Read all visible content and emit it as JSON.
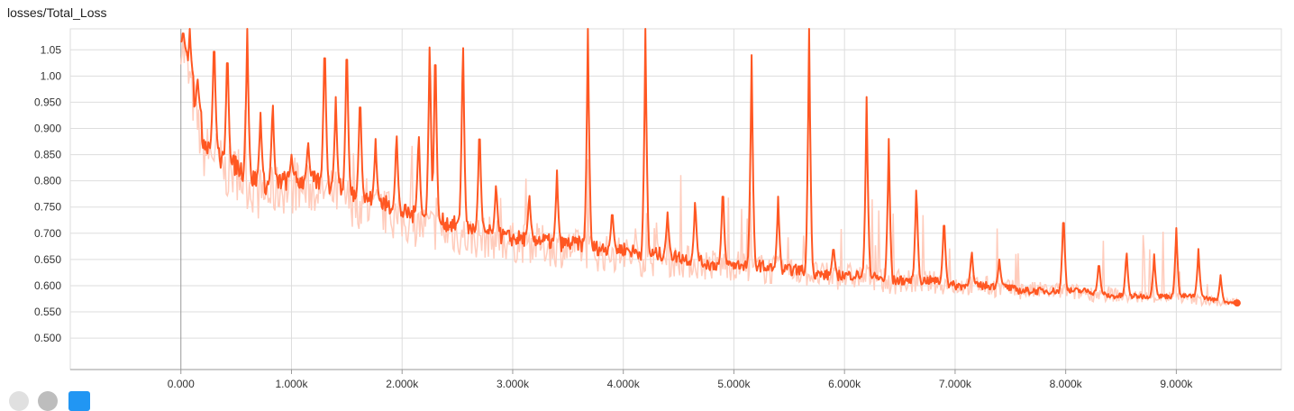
{
  "card": {
    "title": "losses/Total_Loss"
  },
  "colors": {
    "smoothed": "#ff5722",
    "raw": "#ffccbc",
    "grid": "#dddddd",
    "axis": "#999999"
  },
  "chart_data": {
    "type": "line",
    "title": "losses/Total_Loss",
    "xlabel": "",
    "ylabel": "",
    "xlim": [
      -1000,
      9950
    ],
    "ylim": [
      0.44,
      1.09
    ],
    "grid": true,
    "x_ticks": [
      0,
      1000,
      2000,
      3000,
      4000,
      5000,
      6000,
      7000,
      8000,
      9000
    ],
    "x_tick_labels": [
      "0.000",
      "1.000k",
      "2.000k",
      "3.000k",
      "4.000k",
      "5.000k",
      "6.000k",
      "7.000k",
      "8.000k",
      "9.000k"
    ],
    "y_ticks": [
      0.5,
      0.55,
      0.6,
      0.65,
      0.7,
      0.75,
      0.8,
      0.85,
      0.9,
      0.95,
      1.0,
      1.05
    ],
    "y_tick_labels": [
      "0.500",
      "0.550",
      "0.600",
      "0.650",
      "0.700",
      "0.750",
      "0.800",
      "0.850",
      "0.900",
      "0.950",
      "1.00",
      "1.05"
    ],
    "series": [
      {
        "role": "smoothed",
        "x": [
          0,
          100,
          200,
          300,
          400,
          500,
          600,
          700,
          800,
          900,
          1000,
          1200,
          1400,
          1600,
          1800,
          2000,
          2200,
          2400,
          2600,
          2800,
          3000,
          3200,
          3400,
          3600,
          3800,
          4000,
          4200,
          4400,
          4600,
          4800,
          5000,
          5200,
          5400,
          5600,
          5800,
          6000,
          6200,
          6400,
          6600,
          6800,
          7000,
          7200,
          7400,
          7600,
          7800,
          8000,
          8200,
          8400,
          8600,
          8800,
          9000,
          9200,
          9400,
          9550
        ],
        "y": [
          1.06,
          0.98,
          0.88,
          0.86,
          0.83,
          0.83,
          0.81,
          0.8,
          0.79,
          0.8,
          0.8,
          0.8,
          0.79,
          0.77,
          0.76,
          0.74,
          0.73,
          0.72,
          0.71,
          0.7,
          0.69,
          0.69,
          0.68,
          0.68,
          0.67,
          0.67,
          0.66,
          0.66,
          0.65,
          0.64,
          0.64,
          0.64,
          0.63,
          0.63,
          0.62,
          0.62,
          0.62,
          0.61,
          0.61,
          0.61,
          0.6,
          0.6,
          0.6,
          0.59,
          0.59,
          0.59,
          0.59,
          0.58,
          0.58,
          0.58,
          0.58,
          0.58,
          0.57,
          0.567
        ]
      },
      {
        "role": "raw",
        "x": [
          0,
          100,
          200,
          300,
          400,
          500,
          600,
          700,
          800,
          900,
          1000,
          1200,
          1400,
          1600,
          1800,
          2000,
          2200,
          2400,
          2600,
          2800,
          3000,
          3200,
          3400,
          3600,
          3800,
          4000,
          4200,
          4400,
          4600,
          4800,
          5000,
          5200,
          5400,
          5600,
          5800,
          6000,
          6200,
          6400,
          6600,
          6800,
          7000,
          7200,
          7400,
          7600,
          7800,
          8000,
          8200,
          8400,
          8600,
          8800,
          9000,
          9200,
          9400,
          9550
        ],
        "y": [
          1.06,
          0.95,
          0.84,
          0.84,
          0.8,
          0.8,
          0.78,
          0.76,
          0.76,
          0.77,
          0.77,
          0.77,
          0.76,
          0.74,
          0.73,
          0.71,
          0.7,
          0.69,
          0.68,
          0.68,
          0.67,
          0.67,
          0.66,
          0.66,
          0.65,
          0.65,
          0.64,
          0.64,
          0.635,
          0.63,
          0.63,
          0.625,
          0.62,
          0.62,
          0.61,
          0.61,
          0.61,
          0.6,
          0.6,
          0.6,
          0.595,
          0.595,
          0.59,
          0.585,
          0.585,
          0.585,
          0.58,
          0.58,
          0.575,
          0.575,
          0.575,
          0.57,
          0.565,
          0.565
        ]
      }
    ],
    "spikes_smoothed": [
      [
        20,
        1.09
      ],
      [
        80,
        1.09
      ],
      [
        150,
        1.0
      ],
      [
        300,
        1.09
      ],
      [
        420,
        1.07
      ],
      [
        600,
        1.09
      ],
      [
        720,
        0.93
      ],
      [
        830,
        0.96
      ],
      [
        1000,
        0.85
      ],
      [
        1150,
        0.88
      ],
      [
        1300,
        1.09
      ],
      [
        1400,
        0.96
      ],
      [
        1500,
        1.09
      ],
      [
        1620,
        0.98
      ],
      [
        1760,
        0.88
      ],
      [
        1950,
        0.9
      ],
      [
        2150,
        0.9
      ],
      [
        2250,
        1.09
      ],
      [
        2300,
        1.09
      ],
      [
        2550,
        1.09
      ],
      [
        2700,
        0.92
      ],
      [
        2850,
        0.8
      ],
      [
        3150,
        0.78
      ],
      [
        3400,
        0.82
      ],
      [
        3680,
        1.09
      ],
      [
        3900,
        0.75
      ],
      [
        4200,
        1.09
      ],
      [
        4400,
        0.74
      ],
      [
        4650,
        0.77
      ],
      [
        4900,
        0.8
      ],
      [
        5160,
        1.04
      ],
      [
        5400,
        0.77
      ],
      [
        5680,
        1.09
      ],
      [
        5900,
        0.68
      ],
      [
        6200,
        0.96
      ],
      [
        6400,
        0.88
      ],
      [
        6650,
        0.8
      ],
      [
        6900,
        0.74
      ],
      [
        7150,
        0.67
      ],
      [
        7400,
        0.65
      ],
      [
        7980,
        0.75
      ],
      [
        8300,
        0.65
      ],
      [
        8550,
        0.67
      ],
      [
        8800,
        0.66
      ],
      [
        9000,
        0.71
      ],
      [
        9200,
        0.67
      ],
      [
        9400,
        0.62
      ]
    ]
  }
}
